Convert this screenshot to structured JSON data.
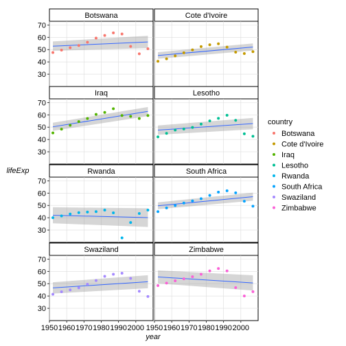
{
  "chart_data": {
    "type": "scatter",
    "xlabel": "year",
    "ylabel": "lifeExp",
    "xlim": [
      1950,
      2010
    ],
    "ylim": [
      20,
      73
    ],
    "x_ticks": [
      1950,
      1960,
      1970,
      1980,
      1990,
      2000
    ],
    "y_ticks": [
      30,
      40,
      50,
      60,
      70
    ],
    "grid": true,
    "legend_position": "right",
    "legend": {
      "title": "country",
      "items": [
        {
          "label": "Botswana",
          "color": "#F8766D"
        },
        {
          "label": "Cote d'Ivoire",
          "color": "#C49A00"
        },
        {
          "label": "Iraq",
          "color": "#53B400"
        },
        {
          "label": "Lesotho",
          "color": "#00C094"
        },
        {
          "label": "Rwanda",
          "color": "#00B6EB"
        },
        {
          "label": "South Africa",
          "color": "#06A4FF"
        },
        {
          "label": "Swaziland",
          "color": "#A58AFF"
        },
        {
          "label": "Zimbabwe",
          "color": "#FB61D7"
        }
      ]
    },
    "years": [
      1952,
      1957,
      1962,
      1967,
      1972,
      1977,
      1982,
      1987,
      1992,
      1997,
      2002,
      2007
    ],
    "panels": [
      {
        "name": "Botswana",
        "color": "#F8766D",
        "values": [
          47.6,
          49.6,
          51.5,
          53.3,
          56.0,
          59.3,
          61.5,
          63.6,
          62.7,
          52.6,
          46.6,
          50.7
        ],
        "fit": [
          52.8,
          56.2
        ],
        "band": [
          [
            49.0,
            56.6
          ],
          [
            51.2,
            61.2
          ]
        ]
      },
      {
        "name": "Cote d'Ivoire",
        "color": "#C49A00",
        "values": [
          40.5,
          42.5,
          44.9,
          47.4,
          49.8,
          52.4,
          53.9,
          54.7,
          52.0,
          47.9,
          46.8,
          48.3
        ],
        "fit": [
          45.2,
          52.1
        ],
        "band": [
          [
            42.5,
            47.9
          ],
          [
            49.2,
            55.0
          ]
        ]
      },
      {
        "name": "Iraq",
        "color": "#53B400",
        "values": [
          45.3,
          48.4,
          51.5,
          54.5,
          57.0,
          60.4,
          62.0,
          65.0,
          59.5,
          58.8,
          57.0,
          59.5
        ],
        "fit": [
          50.3,
          62.8
        ],
        "band": [
          [
            47.0,
            53.6
          ],
          [
            59.0,
            66.4
          ]
        ]
      },
      {
        "name": "Lesotho",
        "color": "#00C094",
        "values": [
          42.1,
          45.0,
          47.7,
          48.5,
          49.8,
          52.5,
          55.1,
          57.2,
          59.7,
          55.6,
          44.6,
          42.6
        ],
        "fit": [
          47.6,
          52.9
        ],
        "band": [
          [
            43.8,
            51.4
          ],
          [
            48.3,
            57.5
          ]
        ]
      },
      {
        "name": "Rwanda",
        "color": "#00B6EB",
        "values": [
          40.0,
          41.5,
          43.0,
          44.1,
          44.6,
          45.0,
          46.2,
          44.0,
          23.6,
          36.1,
          43.4,
          46.2
        ],
        "fit": [
          42.0,
          40.1
        ],
        "band": [
          [
            35.5,
            48.5
          ],
          [
            32.5,
            47.7
          ]
        ]
      },
      {
        "name": "South Africa",
        "color": "#06A4FF",
        "values": [
          45.0,
          47.98,
          49.95,
          51.93,
          53.7,
          55.53,
          58.16,
          60.83,
          61.89,
          60.24,
          53.37,
          49.34
        ],
        "fit": [
          49.7,
          57.1
        ],
        "band": [
          [
            46.9,
            52.5
          ],
          [
            53.8,
            60.4
          ]
        ]
      },
      {
        "name": "Swaziland",
        "color": "#A58AFF",
        "values": [
          41.4,
          43.4,
          44.99,
          46.63,
          49.55,
          52.54,
          56.0,
          57.68,
          58.47,
          54.29,
          43.87,
          39.61
        ],
        "fit": [
          46.6,
          51.6
        ],
        "band": [
          [
            42.0,
            51.2
          ],
          [
            46.3,
            56.9
          ]
        ]
      },
      {
        "name": "Zimbabwe",
        "color": "#FB61D7",
        "values": [
          48.45,
          50.47,
          52.36,
          53.99,
          55.64,
          57.67,
          60.36,
          62.35,
          60.38,
          46.81,
          39.99,
          43.49
        ],
        "fit": [
          55.5,
          50.6
        ],
        "band": [
          [
            50.2,
            60.8
          ],
          [
            44.4,
            56.8
          ]
        ]
      }
    ]
  }
}
